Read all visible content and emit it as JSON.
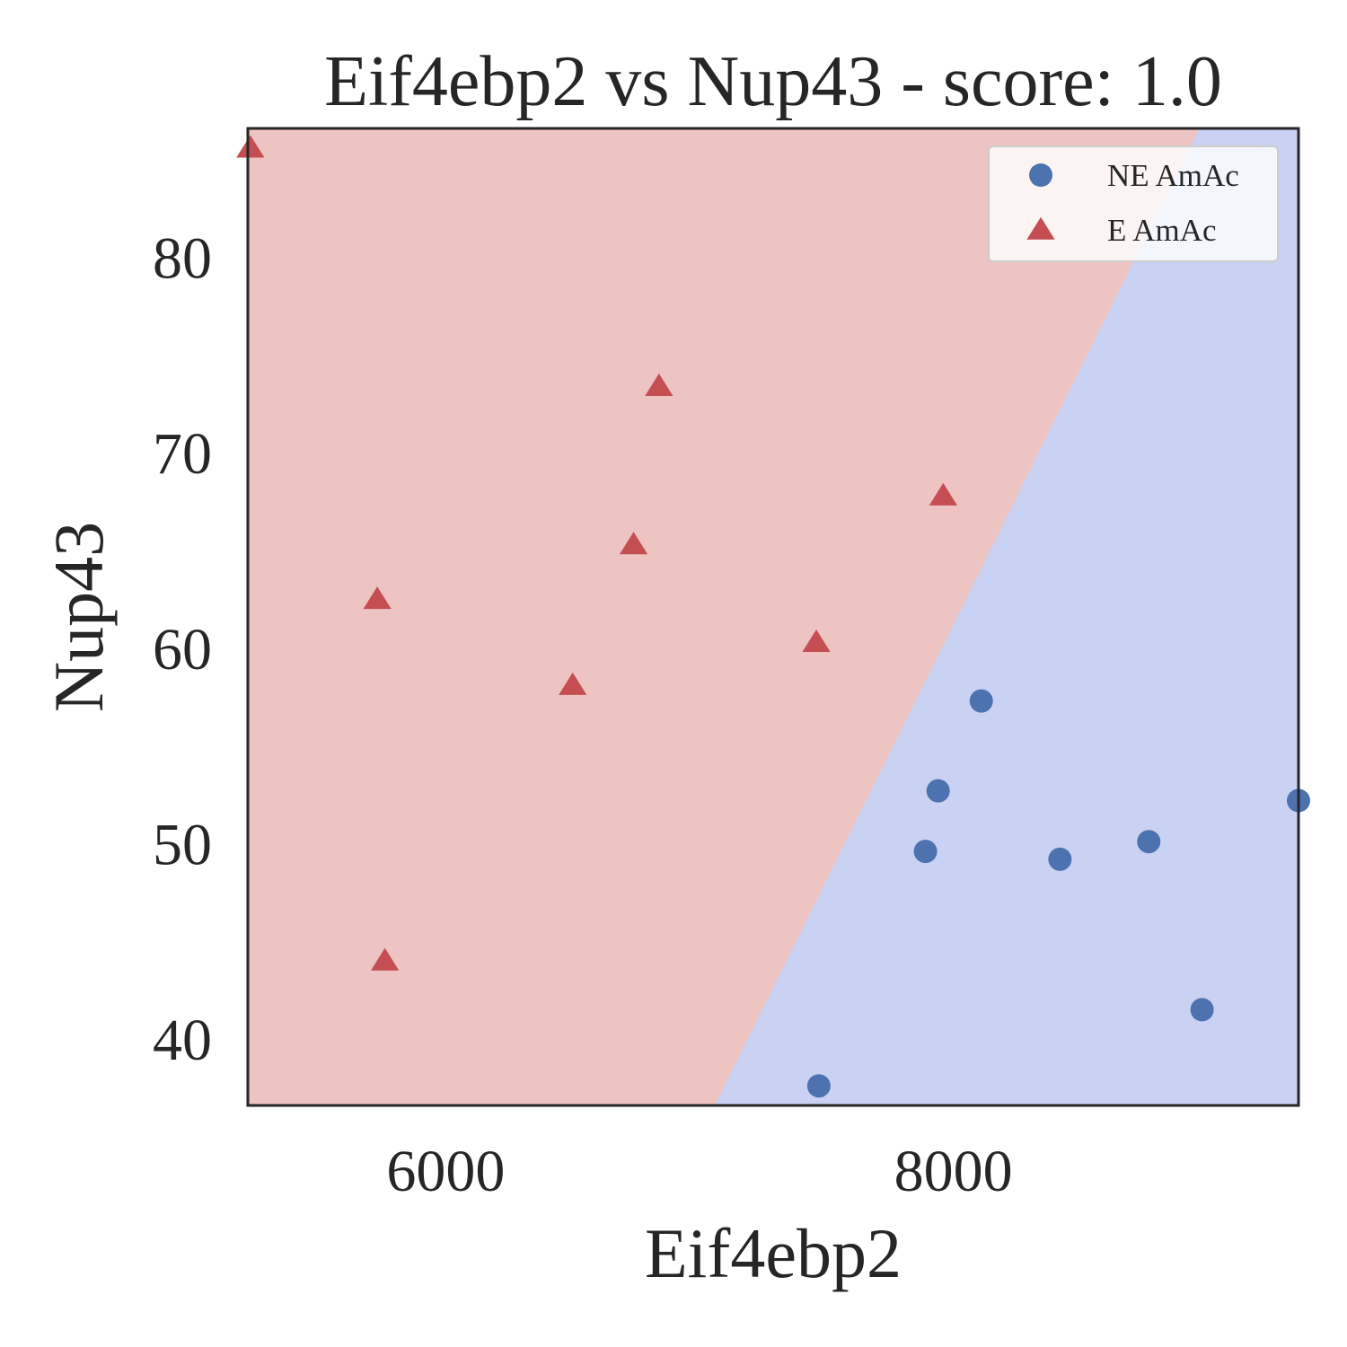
{
  "chart_data": {
    "type": "scatter",
    "title": "Eif4ebp2 vs Nup43 - score: 1.0",
    "xlabel": "Eif4ebp2",
    "ylabel": "Nup43",
    "xlim": [
      5220,
      9360
    ],
    "ylim": [
      36.6,
      86.6
    ],
    "xticks": [
      6000,
      8000
    ],
    "yticks": [
      40,
      50,
      60,
      70,
      80
    ],
    "grid": false,
    "legend_position": "top-right",
    "decision_regions": {
      "boundary": [
        [
          7060,
          36.6
        ],
        [
          8970,
          86.6
        ]
      ],
      "left_class": "E AmAc",
      "right_class": "NE AmAc",
      "left_color": "#edc4c2",
      "right_color": "#c9d2f2"
    },
    "series": [
      {
        "name": "NE AmAc",
        "marker": "circle",
        "color": "#4c72b0",
        "points": [
          [
            7470,
            37.6
          ],
          [
            7890,
            49.6
          ],
          [
            7940,
            52.7
          ],
          [
            8110,
            57.3
          ],
          [
            8420,
            49.2
          ],
          [
            8770,
            50.1
          ],
          [
            8980,
            41.5
          ],
          [
            9360,
            52.2
          ]
        ]
      },
      {
        "name": "E AmAc",
        "marker": "triangle",
        "color": "#c44e52",
        "points": [
          [
            5230,
            85.6
          ],
          [
            5730,
            62.5
          ],
          [
            5760,
            44.0
          ],
          [
            6500,
            58.1
          ],
          [
            6740,
            65.3
          ],
          [
            6840,
            73.4
          ],
          [
            7460,
            60.3
          ],
          [
            7960,
            67.8
          ]
        ]
      }
    ]
  }
}
